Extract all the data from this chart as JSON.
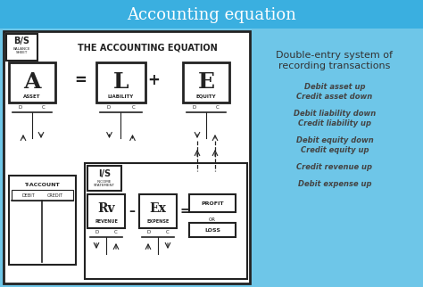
{
  "title": "Accounting equation",
  "title_bg": "#3aafe0",
  "title_color": "white",
  "title_fontsize": 13,
  "bg_color": "#6ec6e8",
  "left_panel_bg": "white",
  "dark_color": "#222222",
  "main_label": "THE ACCOUNTING EQUATION",
  "bs_label": "B/S",
  "bs_sub": "BALANCE\nSHEET",
  "ale_letters": [
    "A",
    "L",
    "E"
  ],
  "ale_labels": [
    "ASSET",
    "LIABILITY",
    "EQUITY"
  ],
  "is_label": "I/S",
  "is_sub": "INCOME\nSTATEMENT",
  "rv_label": "Rv",
  "rv_sub": "REVENUE",
  "ex_label": "Ex",
  "ex_sub": "EXPENSE",
  "t_account_label": "T-ACCOUNT",
  "right_header_1": "Double-entry system of",
  "right_header_2": "recording transactions",
  "right_italic_lines": [
    [
      "Debit asset up",
      "Credit asset down"
    ],
    [
      "Debit liability down",
      "Credit liability up"
    ],
    [
      "Debit equity down",
      "Credit equity up"
    ],
    [
      "Credit revenue up"
    ],
    [
      "Debit expense up"
    ]
  ]
}
